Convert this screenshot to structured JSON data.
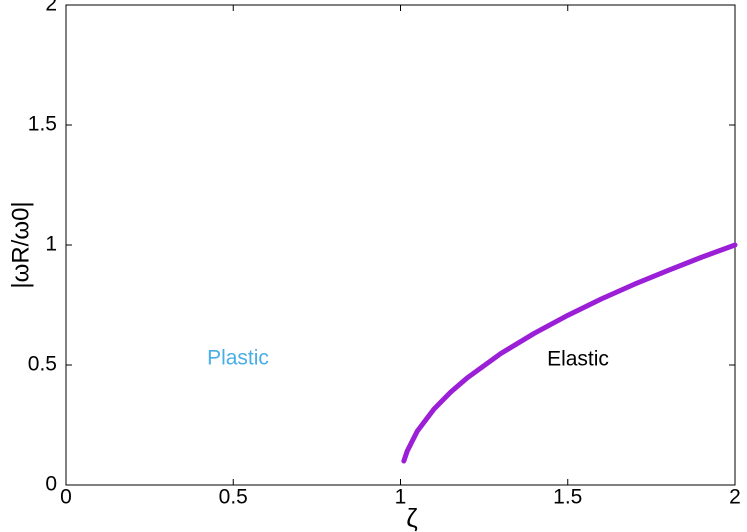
{
  "chart_data": {
    "type": "line",
    "xlabel": "ζ",
    "ylabel": "|ωR/ω0|",
    "x": [
      1.01,
      1.02,
      1.05,
      1.1,
      1.15,
      1.2,
      1.3,
      1.4,
      1.5,
      1.6,
      1.7,
      1.8,
      1.9,
      2.0
    ],
    "series": [
      {
        "color": "#9b1fd6",
        "values": [
          0.1,
          0.141,
          0.224,
          0.316,
          0.387,
          0.447,
          0.548,
          0.632,
          0.707,
          0.775,
          0.837,
          0.894,
          0.949,
          1.0
        ]
      }
    ],
    "xlim": [
      0,
      2
    ],
    "ylim": [
      0,
      2
    ],
    "xticks": [
      0,
      0.5,
      1,
      1.5,
      2
    ],
    "yticks": [
      0,
      0.5,
      1,
      1.5,
      2
    ],
    "grid": false,
    "annotations": [
      {
        "text": "Plastic",
        "color": "#4aaee6"
      },
      {
        "text": "Elastic",
        "color": "#000000"
      }
    ]
  }
}
